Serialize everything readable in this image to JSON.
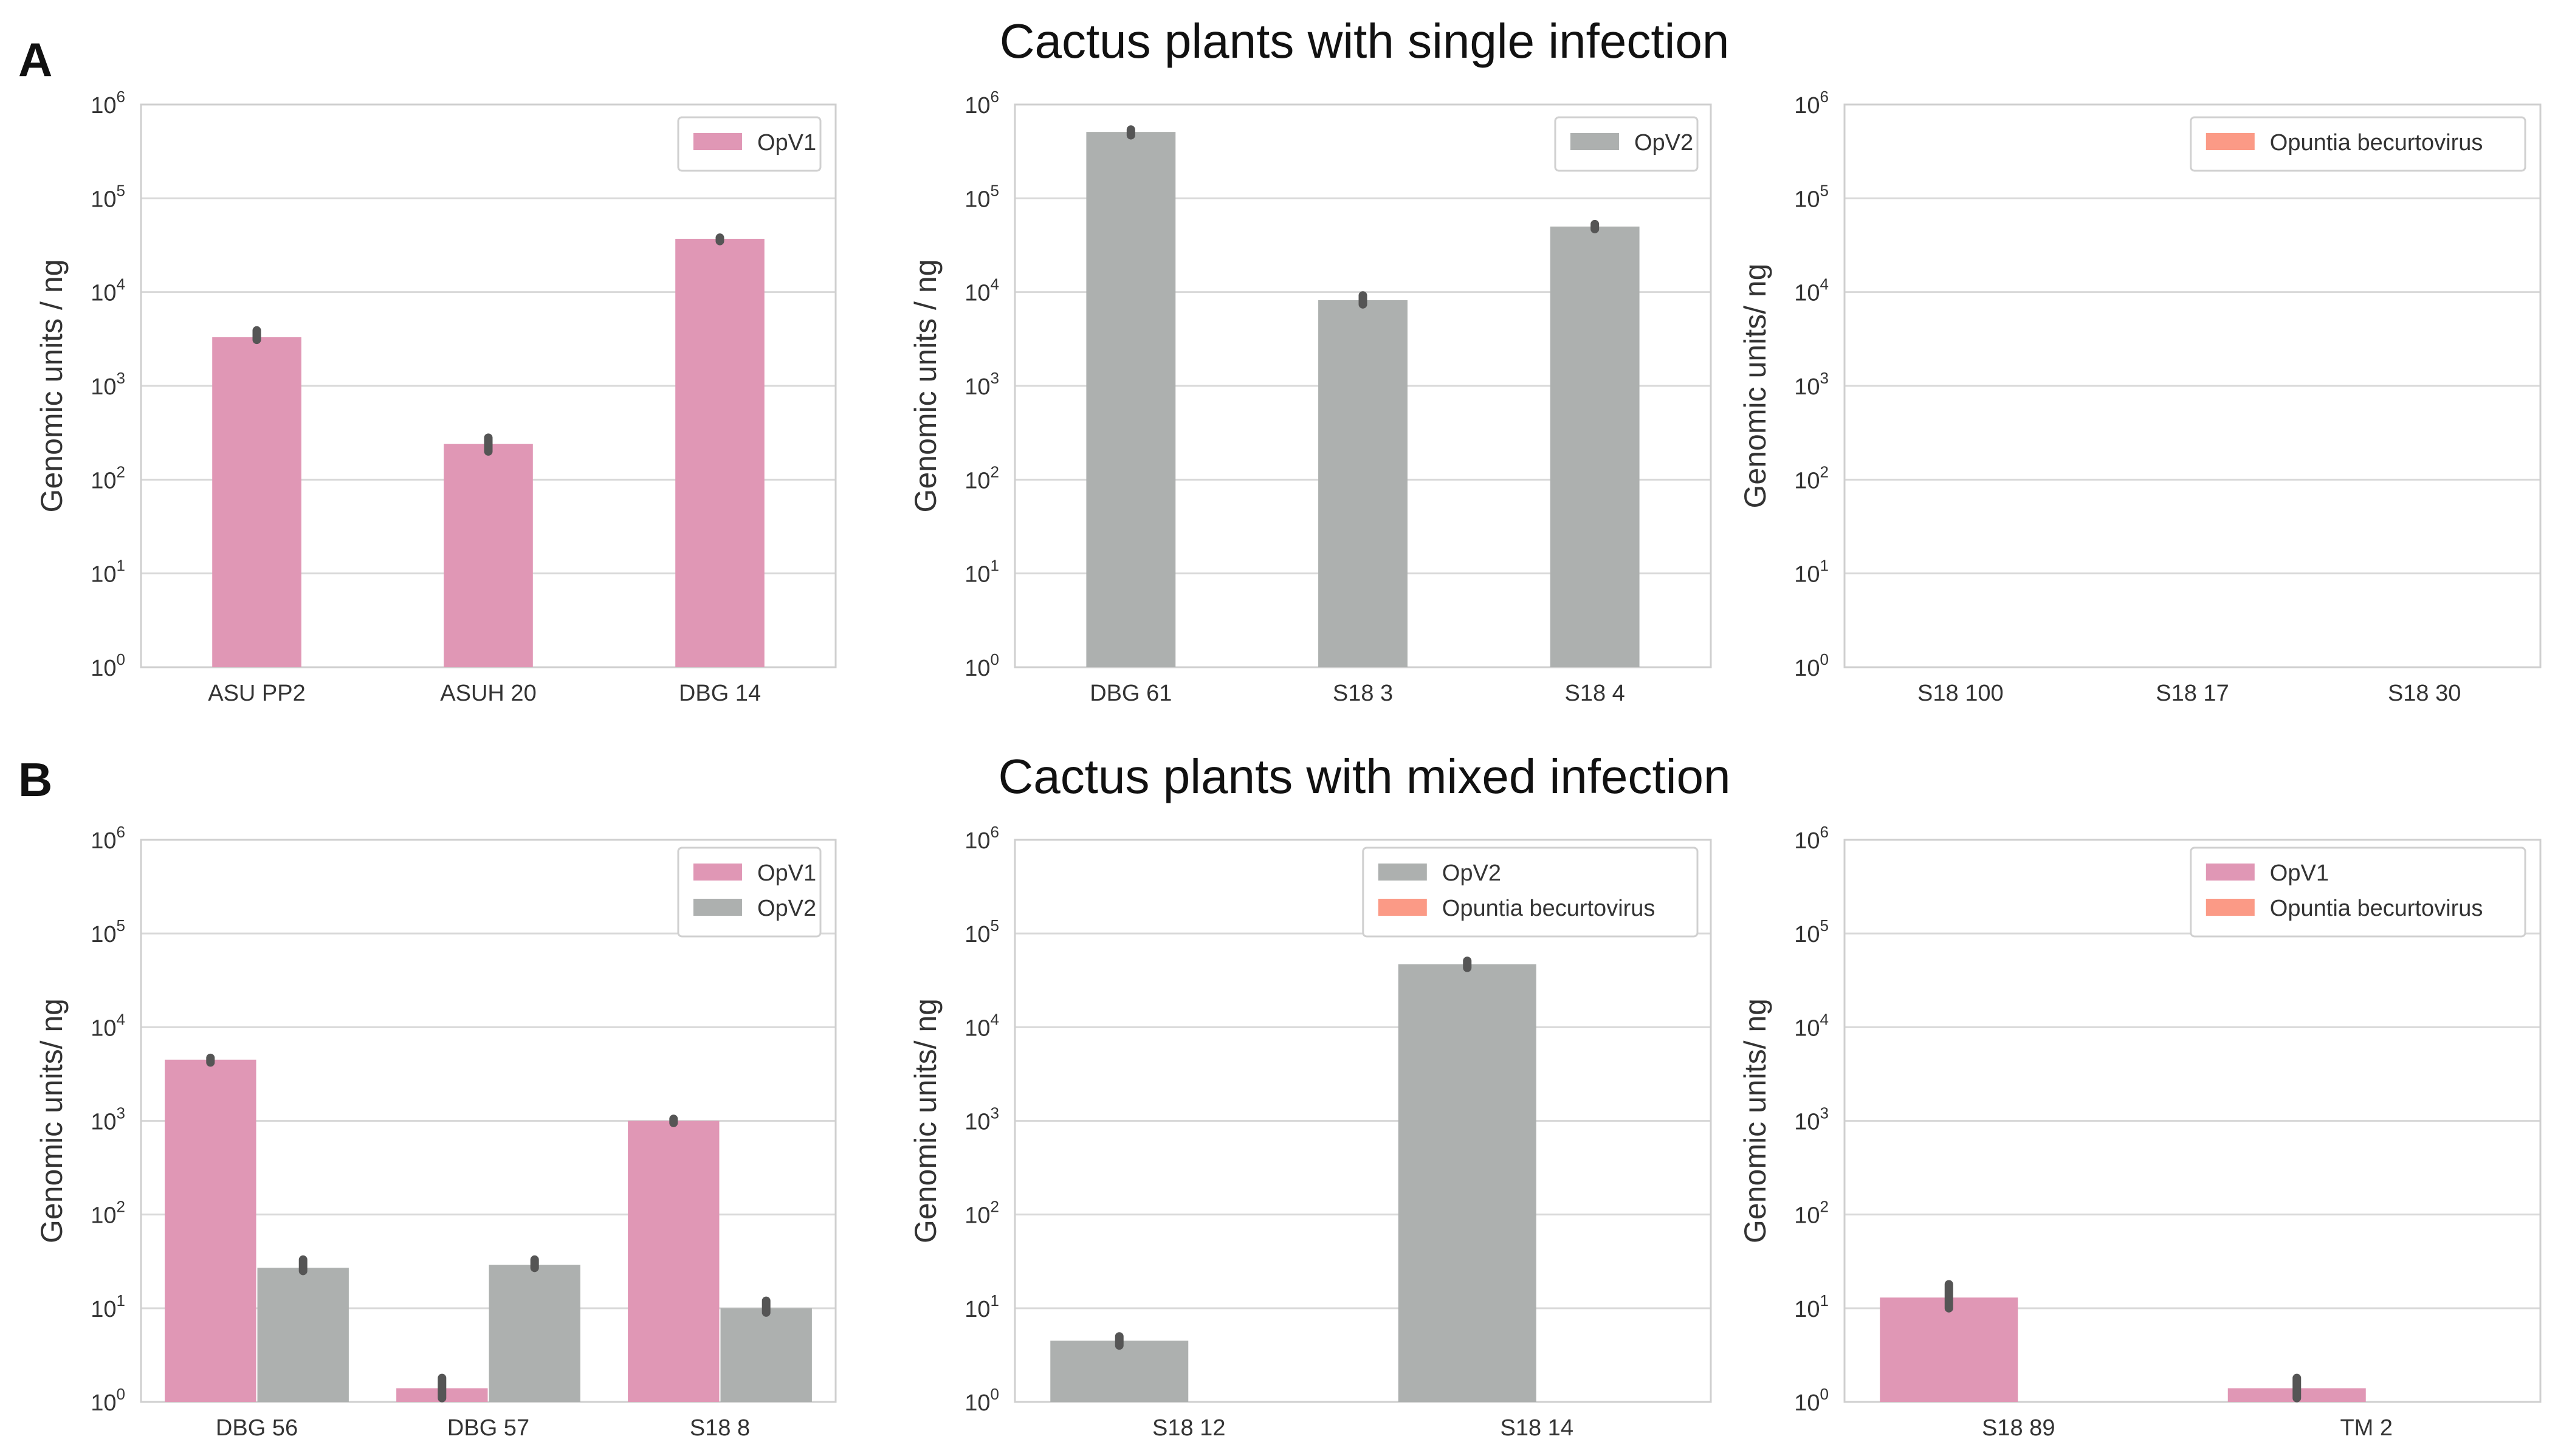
{
  "figure": {
    "panel_labels": [
      "A",
      "B"
    ],
    "row_titles": [
      "Cactus plants with single infection",
      "Cactus plants with mixed infection"
    ]
  },
  "colors": {
    "OpV1": "#e097b5",
    "OpV2": "#adb0af",
    "Opuntia becurtovirus": "#fb9a86",
    "errorbar": "#555555"
  },
  "chart_data": [
    {
      "type": "bar",
      "row": 0,
      "col": 0,
      "ylabel": "Genomic units / ng",
      "yscale": "log",
      "ylim": [
        1,
        1000000
      ],
      "categories": [
        "ASU PP2",
        "ASUH 20",
        "DBG 14"
      ],
      "legend": [
        "OpV1"
      ],
      "series": [
        {
          "name": "OpV1",
          "values": [
            3300,
            240,
            37000
          ],
          "err": [
            [
              3100,
              3900
            ],
            [
              200,
              280
            ],
            [
              35000,
              38000
            ]
          ]
        }
      ]
    },
    {
      "type": "bar",
      "row": 0,
      "col": 1,
      "ylabel": "Genomic units / ng",
      "yscale": "log",
      "ylim": [
        1,
        1000000
      ],
      "categories": [
        "DBG 61",
        "S18 3",
        "S18 4"
      ],
      "legend": [
        "OpV2"
      ],
      "series": [
        {
          "name": "OpV2",
          "values": [
            510000,
            8200,
            50000
          ],
          "err": [
            [
              470000,
              540000
            ],
            [
              7400,
              9200
            ],
            [
              47000,
              53000
            ]
          ]
        }
      ]
    },
    {
      "type": "bar",
      "row": 0,
      "col": 2,
      "ylabel": "Genomic units/ ng",
      "yscale": "log",
      "ylim": [
        1,
        1000000
      ],
      "categories": [
        "S18 100",
        "S18 17",
        "S18 30"
      ],
      "legend": [
        "Opuntia becurtovirus"
      ],
      "series": [
        {
          "name": "Opuntia becurtovirus",
          "values": [
            0,
            0,
            0
          ],
          "err": [
            null,
            null,
            null
          ]
        }
      ]
    },
    {
      "type": "bar",
      "row": 1,
      "col": 0,
      "ylabel": "Genomic units/ ng",
      "yscale": "log",
      "ylim": [
        1,
        1000000
      ],
      "categories": [
        "DBG 56",
        "DBG 57",
        "S18 8"
      ],
      "legend": [
        "OpV1",
        "OpV2"
      ],
      "series": [
        {
          "name": "OpV1",
          "values": [
            4500,
            1.4,
            1000
          ],
          "err": [
            [
              4200,
              4700
            ],
            [
              1.1,
              1.8
            ],
            [
              950,
              1050
            ]
          ]
        },
        {
          "name": "OpV2",
          "values": [
            27,
            29,
            10
          ],
          "err": [
            [
              25,
              33
            ],
            [
              27,
              33
            ],
            [
              9,
              12
            ]
          ]
        }
      ]
    },
    {
      "type": "bar",
      "row": 1,
      "col": 1,
      "ylabel": "Genomic units/ ng",
      "yscale": "log",
      "ylim": [
        1,
        1000000
      ],
      "categories": [
        "S18 12",
        "S18 14"
      ],
      "legend": [
        "OpV2",
        "Opuntia becurtovirus"
      ],
      "series": [
        {
          "name": "OpV2",
          "values": [
            4.5,
            47000
          ],
          "err": [
            [
              4,
              5
            ],
            [
              43000,
              51000
            ]
          ]
        },
        {
          "name": "Opuntia becurtovirus",
          "values": [
            0,
            0
          ],
          "err": [
            null,
            null
          ]
        }
      ]
    },
    {
      "type": "bar",
      "row": 1,
      "col": 2,
      "ylabel": "Genomic units/ ng",
      "yscale": "log",
      "ylim": [
        1,
        1000000
      ],
      "categories": [
        "S18 89",
        "TM 2"
      ],
      "legend": [
        "OpV1",
        "Opuntia becurtovirus"
      ],
      "series": [
        {
          "name": "OpV1",
          "values": [
            13,
            1.4
          ],
          "err": [
            [
              10,
              18
            ],
            [
              1.1,
              1.8
            ]
          ]
        },
        {
          "name": "Opuntia becurtovirus",
          "values": [
            0,
            0
          ],
          "err": [
            null,
            null
          ]
        }
      ]
    }
  ]
}
